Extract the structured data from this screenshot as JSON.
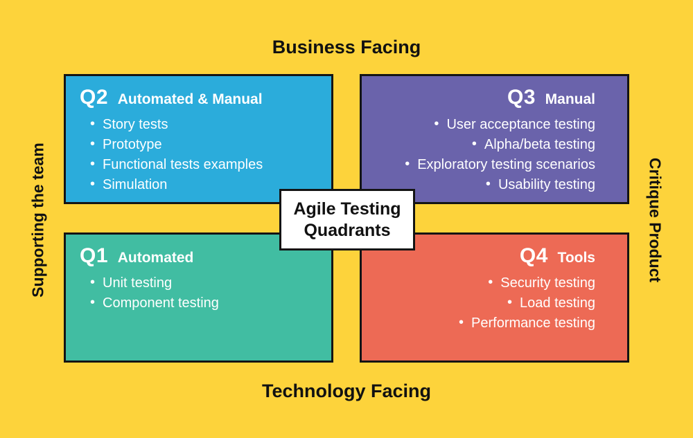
{
  "title": "Agile Testing Quadrants",
  "axes": {
    "top": "Business Facing",
    "bottom": "Technology Facing",
    "left": "Supporting the team",
    "right": "Critique Product"
  },
  "glyphs": {
    "bullet": "•"
  },
  "quadrants": [
    {
      "id": "Q2",
      "label": "Automated & Manual",
      "color": "#2BACDB",
      "position": "top-left",
      "align": "left",
      "items": [
        "Story tests",
        "Prototype",
        "Functional tests examples",
        "Simulation"
      ]
    },
    {
      "id": "Q3",
      "label": "Manual",
      "color": "#6A63AB",
      "position": "top-right",
      "align": "right",
      "items": [
        "User acceptance testing",
        "Alpha/beta testing",
        "Exploratory testing scenarios",
        "Usability testing"
      ]
    },
    {
      "id": "Q1",
      "label": "Automated",
      "color": "#41BDA2",
      "position": "bottom-left",
      "align": "left",
      "items": [
        "Unit testing",
        "Component testing"
      ]
    },
    {
      "id": "Q4",
      "label": "Tools",
      "color": "#ED6A55",
      "position": "bottom-right",
      "align": "right",
      "items": [
        "Security testing",
        "Load testing",
        "Performance testing"
      ]
    }
  ],
  "colors": {
    "background": "#FDD33B",
    "border": "#141414",
    "quadrant_text": "#FFFFFF",
    "axis_text": "#111111",
    "center_box_bg": "#FFFFFF",
    "center_box_text": "#111111"
  }
}
